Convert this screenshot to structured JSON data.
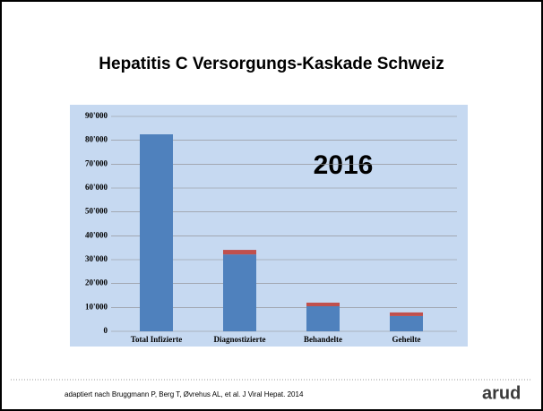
{
  "chart_data": {
    "type": "bar",
    "stacked": true,
    "title": "Hepatitis C Versorgungs-Kaskade Schweiz",
    "annotation": "2016",
    "categories": [
      "Total Infizierte",
      "Diagnostizierte",
      "Behandelte",
      "Geheilte"
    ],
    "series": [
      {
        "color": "#4f81bd",
        "values": [
          82500,
          32200,
          10500,
          6400
        ]
      },
      {
        "color": "#c0504d",
        "values": [
          0,
          1900,
          1500,
          1500
        ]
      }
    ],
    "ylim": [
      0,
      90000
    ],
    "yticks": [
      0,
      {
        "value": 10000,
        "label": "10'000"
      },
      {
        "value": 20000,
        "label": "20'000"
      },
      {
        "value": 30000,
        "label": "30'000"
      },
      {
        "value": 40000,
        "label": "40'000"
      },
      {
        "value": 50000,
        "label": "50'000"
      },
      {
        "value": 60000,
        "label": "60'000"
      },
      {
        "value": 70000,
        "label": "70'000"
      },
      {
        "value": 80000,
        "label": "80'000"
      },
      {
        "value": 90000,
        "label": "90'000"
      }
    ],
    "grid": true
  },
  "footer": {
    "citation": "adaptiert nach Bruggmann P, Berg T, Øvrehus AL, et al. J Viral Hepat. 2014",
    "logo": "arud"
  }
}
